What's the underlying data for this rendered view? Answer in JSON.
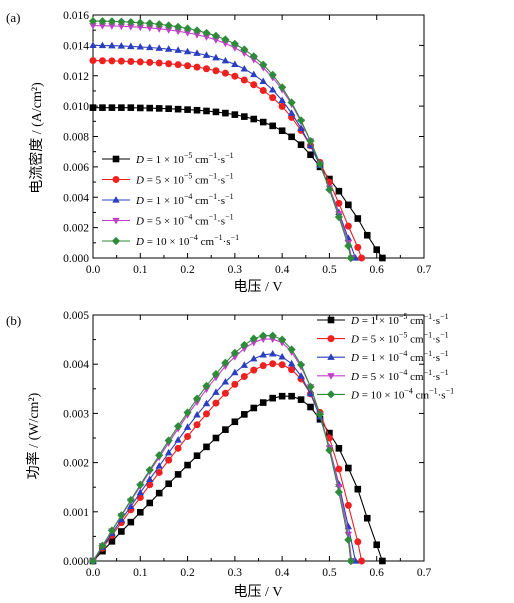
{
  "chart_data": [
    {
      "type": "line",
      "panel_label": "(a)",
      "xlabel": "电压 / V",
      "ylabel": "电流密度 / (A/cm²)",
      "xlim": [
        0,
        0.7
      ],
      "ylim": [
        0,
        0.016
      ],
      "x_ticks": [
        "0.0",
        "0.1",
        "0.2",
        "0.3",
        "0.4",
        "0.5",
        "0.6",
        "0.7"
      ],
      "y_ticks": [
        "0.000",
        "0.002",
        "0.004",
        "0.006",
        "0.008",
        "0.010",
        "0.012",
        "0.014",
        "0.016"
      ],
      "grid": false,
      "legend_position": "lower-left",
      "series": [
        {
          "name": "D = 1 × 10⁻⁵ cm⁻¹·s⁻¹",
          "color": "#000000",
          "marker": "square",
          "x": [
            0,
            0.02,
            0.04,
            0.06,
            0.08,
            0.1,
            0.12,
            0.14,
            0.16,
            0.18,
            0.2,
            0.22,
            0.24,
            0.26,
            0.28,
            0.3,
            0.32,
            0.34,
            0.36,
            0.38,
            0.4,
            0.42,
            0.44,
            0.46,
            0.48,
            0.5,
            0.52,
            0.54,
            0.56,
            0.58,
            0.6,
            0.612
          ],
          "y": [
            0.0099,
            0.0099,
            0.0099,
            0.0099,
            0.0099,
            0.00988,
            0.00987,
            0.00985,
            0.00983,
            0.0098,
            0.00977,
            0.00973,
            0.00968,
            0.00962,
            0.00954,
            0.00944,
            0.00931,
            0.00915,
            0.00895,
            0.0087,
            0.00838,
            0.00798,
            0.00746,
            0.0068,
            0.006,
            0.0052,
            0.0044,
            0.0035,
            0.0026,
            0.0015,
            0.00055,
            0
          ]
        },
        {
          "name": "D = 5 × 10⁻⁵ cm⁻¹·s⁻¹",
          "color": "#ee2020",
          "marker": "circle",
          "x": [
            0,
            0.02,
            0.04,
            0.06,
            0.08,
            0.1,
            0.12,
            0.14,
            0.16,
            0.18,
            0.2,
            0.22,
            0.24,
            0.26,
            0.28,
            0.3,
            0.32,
            0.34,
            0.36,
            0.38,
            0.4,
            0.42,
            0.44,
            0.46,
            0.48,
            0.5,
            0.52,
            0.54,
            0.56,
            0.568
          ],
          "y": [
            0.013,
            0.01299,
            0.01298,
            0.01296,
            0.01294,
            0.01291,
            0.01288,
            0.01284,
            0.01279,
            0.01273,
            0.01266,
            0.01257,
            0.01246,
            0.01233,
            0.01217,
            0.01197,
            0.01172,
            0.01141,
            0.01103,
            0.01056,
            0.00998,
            0.00926,
            0.0084,
            0.0074,
            0.0063,
            0.005,
            0.0036,
            0.0021,
            0.0007,
            0
          ]
        },
        {
          "name": "D = 1 × 10⁻⁴ cm⁻¹·s⁻¹",
          "color": "#2a3fbf",
          "marker": "triangle-up",
          "x": [
            0,
            0.02,
            0.04,
            0.06,
            0.08,
            0.1,
            0.12,
            0.14,
            0.16,
            0.18,
            0.2,
            0.22,
            0.24,
            0.26,
            0.28,
            0.3,
            0.32,
            0.34,
            0.36,
            0.38,
            0.4,
            0.42,
            0.44,
            0.46,
            0.48,
            0.5,
            0.52,
            0.54,
            0.555
          ],
          "y": [
            0.014,
            0.01399,
            0.01398,
            0.01396,
            0.01393,
            0.0139,
            0.01386,
            0.01381,
            0.01375,
            0.01368,
            0.01359,
            0.01348,
            0.01335,
            0.01319,
            0.01299,
            0.01275,
            0.01245,
            0.01208,
            0.01163,
            0.01107,
            0.01038,
            0.00954,
            0.00854,
            0.0074,
            0.0061,
            0.0046,
            0.003,
            0.0013,
            0
          ]
        },
        {
          "name": "D = 5 × 10⁻⁴ cm⁻¹·s⁻¹",
          "color": "#c040c8",
          "marker": "triangle-down",
          "x": [
            0,
            0.02,
            0.04,
            0.06,
            0.08,
            0.1,
            0.12,
            0.14,
            0.16,
            0.18,
            0.2,
            0.22,
            0.24,
            0.26,
            0.28,
            0.3,
            0.32,
            0.34,
            0.36,
            0.38,
            0.4,
            0.42,
            0.44,
            0.46,
            0.48,
            0.5,
            0.52,
            0.54,
            0.547
          ],
          "y": [
            0.0153,
            0.01529,
            0.01528,
            0.01526,
            0.01523,
            0.01519,
            0.01515,
            0.01509,
            0.01502,
            0.01493,
            0.01483,
            0.0147,
            0.01455,
            0.01436,
            0.01413,
            0.01384,
            0.01349,
            0.01306,
            0.01253,
            0.01188,
            0.01109,
            0.01013,
            0.00898,
            0.0077,
            0.0062,
            0.0046,
            0.0029,
            0.001,
            0
          ]
        },
        {
          "name": "D = 10 × 10⁻⁴ cm⁻¹·s⁻¹",
          "color": "#2e8b3a",
          "marker": "diamond",
          "x": [
            0,
            0.02,
            0.04,
            0.06,
            0.08,
            0.1,
            0.12,
            0.14,
            0.16,
            0.18,
            0.2,
            0.22,
            0.24,
            0.26,
            0.28,
            0.3,
            0.32,
            0.34,
            0.36,
            0.38,
            0.4,
            0.42,
            0.44,
            0.46,
            0.48,
            0.5,
            0.52,
            0.54,
            0.545
          ],
          "y": [
            0.0156,
            0.01559,
            0.01558,
            0.01556,
            0.01553,
            0.01549,
            0.01545,
            0.01539,
            0.01531,
            0.01522,
            0.01511,
            0.01498,
            0.01482,
            0.01463,
            0.01439,
            0.0141,
            0.01373,
            0.01328,
            0.01273,
            0.01206,
            0.01124,
            0.01024,
            0.00906,
            0.0077,
            0.0062,
            0.0045,
            0.0027,
            0.0008,
            0
          ]
        }
      ]
    },
    {
      "type": "line",
      "panel_label": "(b)",
      "xlabel": "电压 / V",
      "ylabel": "功率 / (W/cm²)",
      "xlim": [
        0,
        0.7
      ],
      "ylim": [
        0,
        0.005
      ],
      "x_ticks": [
        "0.0",
        "0.1",
        "0.2",
        "0.3",
        "0.4",
        "0.5",
        "0.6",
        "0.7"
      ],
      "y_ticks": [
        "0.000",
        "0.001",
        "0.002",
        "0.003",
        "0.004",
        "0.005"
      ],
      "grid": false,
      "legend_position": "top-right",
      "series": [
        {
          "name": "D = 1 × 10⁻⁵ cm⁻¹·s⁻¹",
          "color": "#000000",
          "marker": "square",
          "x": [
            0,
            0.02,
            0.04,
            0.06,
            0.08,
            0.1,
            0.12,
            0.14,
            0.16,
            0.18,
            0.2,
            0.22,
            0.24,
            0.26,
            0.28,
            0.3,
            0.32,
            0.34,
            0.36,
            0.38,
            0.4,
            0.42,
            0.44,
            0.46,
            0.48,
            0.5,
            0.52,
            0.54,
            0.56,
            0.58,
            0.6,
            0.612
          ],
          "y": [
            0,
            0.0002,
            0.0004,
            0.0006,
            0.00079,
            0.00099,
            0.00118,
            0.00138,
            0.00157,
            0.00176,
            0.00195,
            0.00214,
            0.00232,
            0.0025,
            0.00267,
            0.00283,
            0.00298,
            0.00311,
            0.00322,
            0.00331,
            0.00335,
            0.00335,
            0.00328,
            0.00313,
            0.00288,
            0.0026,
            0.00229,
            0.00189,
            0.00146,
            0.00087,
            0.00033,
            0
          ]
        },
        {
          "name": "D = 5 × 10⁻⁵ cm⁻¹·s⁻¹",
          "color": "#ee2020",
          "marker": "circle",
          "x": [
            0,
            0.02,
            0.04,
            0.06,
            0.08,
            0.1,
            0.12,
            0.14,
            0.16,
            0.18,
            0.2,
            0.22,
            0.24,
            0.26,
            0.28,
            0.3,
            0.32,
            0.34,
            0.36,
            0.38,
            0.4,
            0.42,
            0.44,
            0.46,
            0.48,
            0.5,
            0.52,
            0.54,
            0.56,
            0.568
          ],
          "y": [
            0,
            0.00026,
            0.00052,
            0.00078,
            0.00104,
            0.00129,
            0.00155,
            0.0018,
            0.00205,
            0.00229,
            0.00253,
            0.00277,
            0.00299,
            0.00321,
            0.00341,
            0.00359,
            0.00375,
            0.00388,
            0.00397,
            0.00401,
            0.00399,
            0.00389,
            0.0037,
            0.0034,
            0.00302,
            0.0025,
            0.00187,
            0.00113,
            0.00039,
            0
          ]
        },
        {
          "name": "D = 1 × 10⁻⁴ cm⁻¹·s⁻¹",
          "color": "#2a3fbf",
          "marker": "triangle-up",
          "x": [
            0,
            0.02,
            0.04,
            0.06,
            0.08,
            0.1,
            0.12,
            0.14,
            0.16,
            0.18,
            0.2,
            0.22,
            0.24,
            0.26,
            0.28,
            0.3,
            0.32,
            0.34,
            0.36,
            0.38,
            0.4,
            0.42,
            0.44,
            0.46,
            0.48,
            0.5,
            0.52,
            0.54,
            0.555
          ],
          "y": [
            0,
            0.00028,
            0.00056,
            0.00084,
            0.00111,
            0.00139,
            0.00166,
            0.00193,
            0.0022,
            0.00246,
            0.00272,
            0.00297,
            0.0032,
            0.00343,
            0.00364,
            0.00383,
            0.00398,
            0.00411,
            0.00419,
            0.00421,
            0.00415,
            0.00401,
            0.00376,
            0.0034,
            0.00293,
            0.0023,
            0.00156,
            0.0007,
            0
          ]
        },
        {
          "name": "D = 5 × 10⁻⁴ cm⁻¹·s⁻¹",
          "color": "#c040c8",
          "marker": "triangle-down",
          "x": [
            0,
            0.02,
            0.04,
            0.06,
            0.08,
            0.1,
            0.12,
            0.14,
            0.16,
            0.18,
            0.2,
            0.22,
            0.24,
            0.26,
            0.28,
            0.3,
            0.32,
            0.34,
            0.36,
            0.38,
            0.4,
            0.42,
            0.44,
            0.46,
            0.48,
            0.5,
            0.52,
            0.54,
            0.547
          ],
          "y": [
            0,
            0.00031,
            0.00061,
            0.00092,
            0.00122,
            0.00152,
            0.00182,
            0.00211,
            0.0024,
            0.00269,
            0.00297,
            0.00323,
            0.00349,
            0.00373,
            0.00396,
            0.00415,
            0.00432,
            0.00444,
            0.00451,
            0.00451,
            0.00444,
            0.00425,
            0.00395,
            0.00354,
            0.00298,
            0.0023,
            0.00151,
            0.00054,
            0
          ]
        },
        {
          "name": "D = 10 × 10⁻⁴ cm⁻¹·s⁻¹",
          "color": "#2e8b3a",
          "marker": "diamond",
          "x": [
            0,
            0.02,
            0.04,
            0.06,
            0.08,
            0.1,
            0.12,
            0.14,
            0.16,
            0.18,
            0.2,
            0.22,
            0.24,
            0.26,
            0.28,
            0.3,
            0.32,
            0.34,
            0.36,
            0.38,
            0.4,
            0.42,
            0.44,
            0.46,
            0.48,
            0.5,
            0.52,
            0.54,
            0.545
          ],
          "y": [
            0,
            0.00031,
            0.00062,
            0.00093,
            0.00124,
            0.00155,
            0.00185,
            0.00215,
            0.00245,
            0.00274,
            0.00302,
            0.0033,
            0.00356,
            0.0038,
            0.00403,
            0.00423,
            0.00439,
            0.00452,
            0.00458,
            0.00458,
            0.0045,
            0.0043,
            0.00399,
            0.00354,
            0.00298,
            0.00225,
            0.0014,
            0.00043,
            0
          ]
        }
      ]
    }
  ],
  "legend_items": [
    {
      "prefix": "D",
      "eq": " = ",
      "mant": "1",
      "exp": "−5"
    },
    {
      "prefix": "D",
      "eq": " = ",
      "mant": "5",
      "exp": "−5"
    },
    {
      "prefix": "D",
      "eq": " = ",
      "mant": "1",
      "exp": "−4"
    },
    {
      "prefix": "D",
      "eq": " = ",
      "mant": "5",
      "exp": "−4"
    },
    {
      "prefix": "D",
      "eq": " = ",
      "mant": "10",
      "exp": "−4"
    }
  ],
  "legend_unit": {
    "times": " × 10",
    "cm": " cm",
    "cm_exp": "−1",
    "dot": "·s",
    "s_exp": "−1"
  }
}
